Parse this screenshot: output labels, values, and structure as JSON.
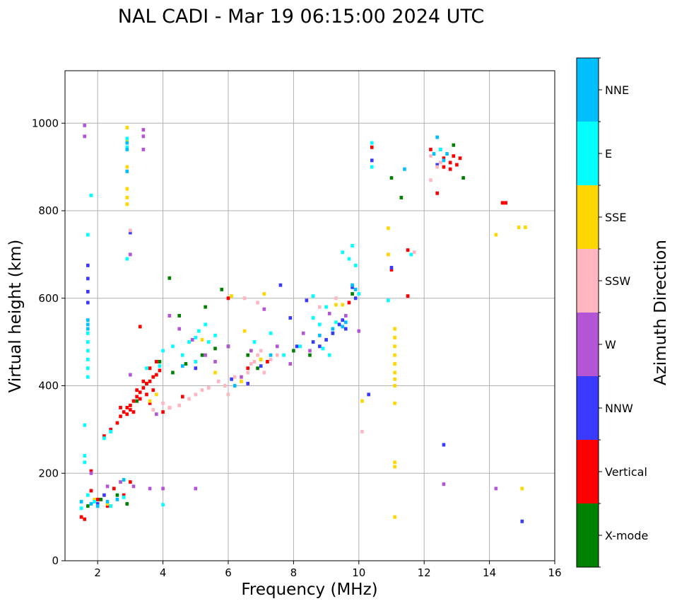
{
  "chart_data": {
    "type": "scatter",
    "title": "NAL CADI - Mar 19 06:15:00 2024 UTC",
    "xlabel": "Frequency (MHz)",
    "ylabel": "Virtual height (km)",
    "xlim": [
      1,
      16
    ],
    "ylim": [
      0,
      1120
    ],
    "xticks": [
      2,
      4,
      6,
      8,
      10,
      12,
      14,
      16
    ],
    "xtick_labels": [
      "2",
      "4",
      "6",
      "8",
      "10",
      "12",
      "14",
      "16"
    ],
    "yticks": [
      0,
      200,
      400,
      600,
      800,
      1000
    ],
    "ytick_labels": [
      "0",
      "200",
      "400",
      "600",
      "800",
      "1000"
    ],
    "grid": true,
    "colorbar": {
      "label": "Azimuth Direction",
      "categories": [
        "X-mode",
        "Vertical",
        "NNW",
        "W",
        "SSW",
        "SSE",
        "E",
        "NNE"
      ],
      "colors": [
        "#008000",
        "#ff0000",
        "#3a3aff",
        "#b455d6",
        "#ffb6c1",
        "#ffd700",
        "#00ffff",
        "#00bfff"
      ]
    },
    "cell_size": {
      "df": 0.1,
      "dh": 8
    },
    "series": [
      {
        "name": "X-mode",
        "points": [
          [
            3.2,
            365
          ],
          [
            3.5,
            405
          ],
          [
            4.3,
            430
          ],
          [
            4.7,
            450
          ],
          [
            5.2,
            470
          ],
          [
            5.6,
            485
          ],
          [
            6.0,
            490
          ],
          [
            6.6,
            470
          ],
          [
            7.0,
            460
          ],
          [
            3.9,
            455
          ],
          [
            4.2,
            646
          ],
          [
            5.8,
            620
          ],
          [
            8.0,
            480
          ],
          [
            8.5,
            470
          ],
          [
            9.2,
            520
          ],
          [
            9.8,
            610
          ],
          [
            11.0,
            875
          ],
          [
            11.3,
            830
          ],
          [
            12.9,
            950
          ],
          [
            13.2,
            875
          ],
          [
            1.7,
            125
          ],
          [
            2.1,
            140
          ],
          [
            2.6,
            150
          ],
          [
            2.9,
            130
          ],
          [
            4.5,
            560
          ],
          [
            5.3,
            580
          ],
          [
            6.9,
            440
          ]
        ]
      },
      {
        "name": "Vertical",
        "points": [
          [
            1.5,
            100
          ],
          [
            1.6,
            95
          ],
          [
            1.8,
            205
          ],
          [
            2.2,
            285
          ],
          [
            2.4,
            300
          ],
          [
            2.6,
            315
          ],
          [
            2.7,
            330
          ],
          [
            2.8,
            340
          ],
          [
            2.9,
            350
          ],
          [
            3.0,
            355
          ],
          [
            3.1,
            365
          ],
          [
            3.2,
            375
          ],
          [
            3.3,
            385
          ],
          [
            3.4,
            395
          ],
          [
            3.5,
            405
          ],
          [
            3.6,
            410
          ],
          [
            3.7,
            420
          ],
          [
            3.8,
            425
          ],
          [
            3.9,
            435
          ],
          [
            3.0,
            345
          ],
          [
            3.2,
            390
          ],
          [
            3.4,
            410
          ],
          [
            3.6,
            440
          ],
          [
            3.8,
            455
          ],
          [
            3.3,
            535
          ],
          [
            1.8,
            160
          ],
          [
            2.0,
            140
          ],
          [
            2.3,
            125
          ],
          [
            2.5,
            165
          ],
          [
            2.8,
            150
          ],
          [
            3.0,
            180
          ],
          [
            4.0,
            340
          ],
          [
            4.2,
            350
          ],
          [
            3.6,
            360
          ],
          [
            6.0,
            600
          ],
          [
            6.6,
            440
          ],
          [
            7.2,
            455
          ],
          [
            9.7,
            590
          ],
          [
            11.0,
            665
          ],
          [
            11.5,
            710
          ],
          [
            11.5,
            605
          ],
          [
            12.4,
            840
          ],
          [
            12.6,
            920
          ],
          [
            12.6,
            900
          ],
          [
            12.8,
            910
          ],
          [
            12.8,
            895
          ],
          [
            12.9,
            925
          ],
          [
            13.0,
            905
          ],
          [
            13.1,
            920
          ],
          [
            14.4,
            818
          ],
          [
            14.5,
            818
          ],
          [
            10.4,
            945
          ],
          [
            12.2,
            940
          ],
          [
            4.6,
            375
          ],
          [
            2.7,
            350
          ],
          [
            2.9,
            335
          ],
          [
            3.1,
            340
          ],
          [
            3.3,
            370
          ],
          [
            3.5,
            380
          ],
          [
            3.7,
            390
          ]
        ]
      },
      {
        "name": "NNW",
        "points": [
          [
            1.7,
            675
          ],
          [
            1.7,
            645
          ],
          [
            1.7,
            615
          ],
          [
            1.7,
            590
          ],
          [
            2.0,
            130
          ],
          [
            2.2,
            150
          ],
          [
            5.0,
            440
          ],
          [
            6.1,
            415
          ],
          [
            6.6,
            405
          ],
          [
            7.0,
            445
          ],
          [
            7.6,
            630
          ],
          [
            7.9,
            555
          ],
          [
            8.1,
            490
          ],
          [
            8.6,
            500
          ],
          [
            8.8,
            490
          ],
          [
            9.0,
            505
          ],
          [
            9.2,
            520
          ],
          [
            9.4,
            540
          ],
          [
            9.5,
            550
          ],
          [
            9.6,
            530
          ],
          [
            9.8,
            625
          ],
          [
            9.9,
            600
          ],
          [
            10.3,
            380
          ],
          [
            11.0,
            670
          ],
          [
            12.4,
            905
          ],
          [
            12.5,
            940
          ],
          [
            12.6,
            265
          ],
          [
            15.0,
            90
          ],
          [
            3.0,
            750
          ],
          [
            8.4,
            595
          ],
          [
            10.4,
            915
          ]
        ]
      },
      {
        "name": "W",
        "points": [
          [
            1.6,
            995
          ],
          [
            1.6,
            970
          ],
          [
            3.4,
            985
          ],
          [
            3.4,
            970
          ],
          [
            3.4,
            940
          ],
          [
            3.0,
            700
          ],
          [
            1.8,
            200
          ],
          [
            2.3,
            170
          ],
          [
            2.7,
            180
          ],
          [
            3.1,
            170
          ],
          [
            3.6,
            165
          ],
          [
            4.0,
            165
          ],
          [
            5.0,
            165
          ],
          [
            4.2,
            560
          ],
          [
            4.5,
            530
          ],
          [
            4.9,
            505
          ],
          [
            5.3,
            470
          ],
          [
            5.6,
            455
          ],
          [
            6.0,
            490
          ],
          [
            6.4,
            420
          ],
          [
            6.7,
            480
          ],
          [
            7.1,
            575
          ],
          [
            7.5,
            490
          ],
          [
            7.9,
            450
          ],
          [
            8.3,
            520
          ],
          [
            8.5,
            480
          ],
          [
            9.1,
            565
          ],
          [
            9.6,
            560
          ],
          [
            10.0,
            525
          ],
          [
            12.6,
            175
          ],
          [
            14.2,
            165
          ],
          [
            3.0,
            425
          ],
          [
            3.8,
            335
          ]
        ]
      },
      {
        "name": "SSW",
        "points": [
          [
            3.0,
            755
          ],
          [
            4.2,
            350
          ],
          [
            4.5,
            355
          ],
          [
            4.8,
            370
          ],
          [
            5.0,
            380
          ],
          [
            5.2,
            390
          ],
          [
            5.4,
            395
          ],
          [
            5.7,
            410
          ],
          [
            5.9,
            400
          ],
          [
            6.0,
            380
          ],
          [
            6.2,
            420
          ],
          [
            6.4,
            410
          ],
          [
            6.6,
            430
          ],
          [
            6.7,
            450
          ],
          [
            6.8,
            455
          ],
          [
            6.9,
            470
          ],
          [
            7.0,
            480
          ],
          [
            7.1,
            430
          ],
          [
            7.3,
            460
          ],
          [
            7.5,
            470
          ],
          [
            6.5,
            600
          ],
          [
            6.9,
            590
          ],
          [
            8.8,
            580
          ],
          [
            9.3,
            600
          ],
          [
            10.1,
            295
          ],
          [
            10.9,
            700
          ],
          [
            11.7,
            705
          ],
          [
            12.2,
            870
          ],
          [
            12.4,
            900
          ],
          [
            12.5,
            910
          ],
          [
            12.2,
            925
          ],
          [
            3.7,
            345
          ],
          [
            4.0,
            360
          ]
        ]
      },
      {
        "name": "SSE",
        "points": [
          [
            2.9,
            990
          ],
          [
            2.9,
            960
          ],
          [
            2.9,
            900
          ],
          [
            2.9,
            890
          ],
          [
            2.9,
            850
          ],
          [
            2.9,
            830
          ],
          [
            2.9,
            815
          ],
          [
            3.6,
            365
          ],
          [
            3.8,
            380
          ],
          [
            5.6,
            430
          ],
          [
            6.1,
            605
          ],
          [
            6.5,
            525
          ],
          [
            7.1,
            610
          ],
          [
            9.3,
            585
          ],
          [
            9.5,
            585
          ],
          [
            10.1,
            365
          ],
          [
            10.9,
            760
          ],
          [
            10.9,
            700
          ],
          [
            11.1,
            530
          ],
          [
            11.1,
            510
          ],
          [
            11.1,
            490
          ],
          [
            11.1,
            470
          ],
          [
            11.1,
            450
          ],
          [
            11.1,
            430
          ],
          [
            11.1,
            415
          ],
          [
            11.1,
            400
          ],
          [
            11.1,
            360
          ],
          [
            11.1,
            225
          ],
          [
            11.1,
            215
          ],
          [
            11.1,
            100
          ],
          [
            14.2,
            745
          ],
          [
            14.9,
            762
          ],
          [
            15.1,
            762
          ],
          [
            15.0,
            165
          ],
          [
            1.9,
            140
          ],
          [
            2.3,
            130
          ],
          [
            6.4,
            410
          ],
          [
            7.0,
            460
          ],
          [
            5.2,
            505
          ]
        ]
      },
      {
        "name": "E",
        "points": [
          [
            1.6,
            240
          ],
          [
            1.6,
            225
          ],
          [
            1.6,
            310
          ],
          [
            1.8,
            835
          ],
          [
            1.7,
            745
          ],
          [
            1.7,
            520
          ],
          [
            1.7,
            500
          ],
          [
            1.7,
            480
          ],
          [
            1.7,
            460
          ],
          [
            1.7,
            440
          ],
          [
            1.7,
            420
          ],
          [
            2.9,
            965
          ],
          [
            2.9,
            945
          ],
          [
            2.9,
            690
          ],
          [
            1.5,
            120
          ],
          [
            1.7,
            150
          ],
          [
            1.9,
            135
          ],
          [
            2.4,
            125
          ],
          [
            2.8,
            145
          ],
          [
            4.0,
            128
          ],
          [
            2.2,
            280
          ],
          [
            2.4,
            295
          ],
          [
            4.0,
            480
          ],
          [
            4.3,
            490
          ],
          [
            4.6,
            470
          ],
          [
            4.8,
            500
          ],
          [
            5.0,
            510
          ],
          [
            5.1,
            525
          ],
          [
            5.3,
            540
          ],
          [
            5.4,
            500
          ],
          [
            5.6,
            515
          ],
          [
            5.0,
            455
          ],
          [
            6.8,
            500
          ],
          [
            7.3,
            520
          ],
          [
            7.7,
            470
          ],
          [
            8.2,
            490
          ],
          [
            8.6,
            605
          ],
          [
            8.6,
            555
          ],
          [
            8.8,
            540
          ],
          [
            9.0,
            580
          ],
          [
            9.3,
            545
          ],
          [
            9.5,
            705
          ],
          [
            9.7,
            690
          ],
          [
            9.8,
            720
          ],
          [
            9.9,
            675
          ],
          [
            10.0,
            610
          ],
          [
            10.9,
            595
          ],
          [
            11.6,
            700
          ],
          [
            10.4,
            955
          ],
          [
            10.4,
            900
          ],
          [
            12.5,
            940
          ],
          [
            3.5,
            440
          ],
          [
            3.9,
            445
          ],
          [
            8.9,
            485
          ],
          [
            9.1,
            470
          ]
        ]
      },
      {
        "name": "NNE",
        "points": [
          [
            1.7,
            550
          ],
          [
            1.7,
            540
          ],
          [
            1.7,
            530
          ],
          [
            1.5,
            135
          ],
          [
            1.8,
            130
          ],
          [
            2.0,
            125
          ],
          [
            2.3,
            135
          ],
          [
            2.6,
            140
          ],
          [
            2.8,
            185
          ],
          [
            2.9,
            955
          ],
          [
            2.9,
            940
          ],
          [
            2.9,
            890
          ],
          [
            8.8,
            515
          ],
          [
            9.2,
            530
          ],
          [
            9.5,
            535
          ],
          [
            9.6,
            545
          ],
          [
            9.8,
            630
          ],
          [
            9.9,
            620
          ],
          [
            11.4,
            895
          ],
          [
            12.4,
            968
          ],
          [
            12.6,
            915
          ],
          [
            12.7,
            930
          ],
          [
            12.3,
            930
          ],
          [
            4.6,
            445
          ],
          [
            6.2,
            400
          ],
          [
            7.3,
            470
          ]
        ]
      }
    ]
  }
}
